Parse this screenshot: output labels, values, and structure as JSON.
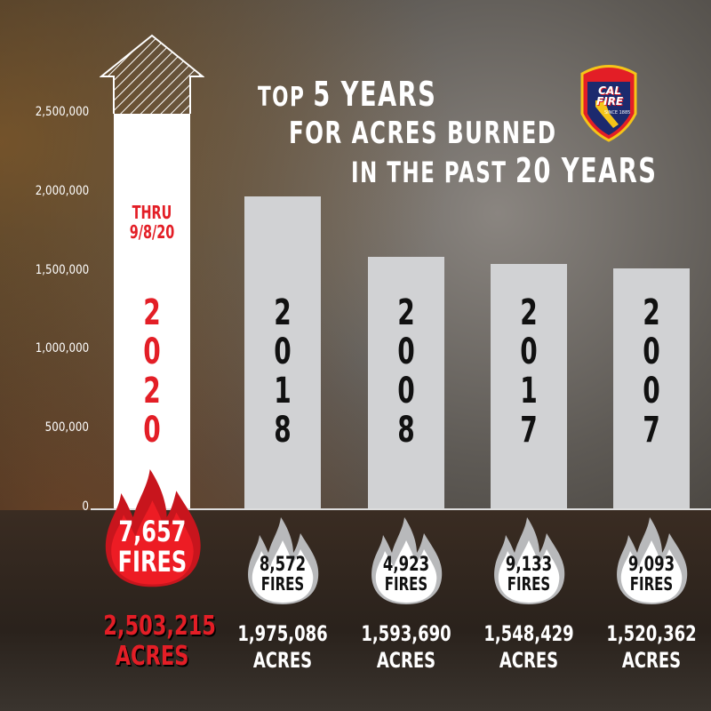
{
  "header": {
    "line1_a": "TOP ",
    "line1_b": "5 YEARS",
    "line2": "FOR ACRES BURNED",
    "line3_a": "IN THE PAST ",
    "line3_b": "20 YEARS"
  },
  "logo": {
    "text_top": "CALIFORNIA DEPARTMENT OF FORESTRY & FIRE PROTECTION",
    "name": "CAL FIRE",
    "since": "SINCE 1885"
  },
  "chart_data": {
    "type": "bar",
    "title": "TOP 5 YEARS FOR ACRES BURNED IN THE PAST 20 YEARS",
    "categories": [
      "2020",
      "2018",
      "2008",
      "2017",
      "2007"
    ],
    "values": [
      2503215,
      1975086,
      1593690,
      1548429,
      1520362
    ],
    "fires": [
      "7,657",
      "8,572",
      "4,923",
      "9,133",
      "9,093"
    ],
    "acres_labels": [
      "2,503,215",
      "1,975,086",
      "1,593,690",
      "1,548,429",
      "1,520,362"
    ],
    "fires_unit": "FIRES",
    "acres_unit": "ACRES",
    "annotation": "THRU 9/8/20",
    "highlight": "2020",
    "yticks": [
      "0",
      "500,000",
      "1,000,000",
      "1,500,000",
      "2,000,000",
      "2,500,000"
    ],
    "ylim": [
      0,
      2500000
    ],
    "colors": {
      "highlight": "#e31e26",
      "bar": "#d1d2d4",
      "highlight_bar": "#ffffff"
    }
  }
}
